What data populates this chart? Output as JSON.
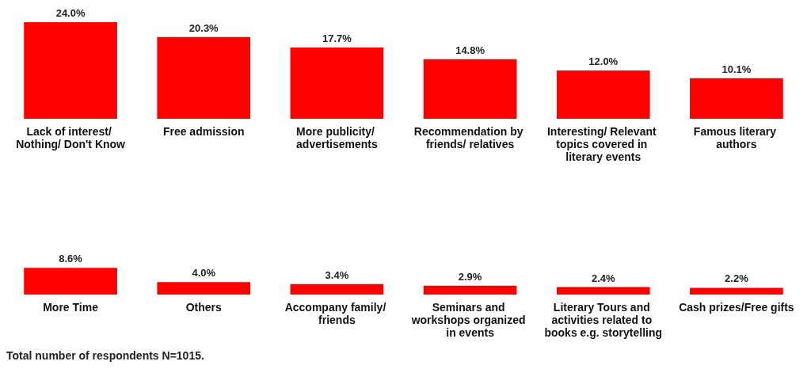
{
  "chart_data": [
    {
      "type": "bar",
      "categories": [
        "Lack of interest/ Nothing/ Don't Know",
        "Free admission",
        "More publicity/ advertisements",
        "Recommendation by friends/ relatives",
        "Interesting/ Relevant topics covered in literary events",
        "Famous literary authors"
      ],
      "values": [
        24.0,
        20.3,
        17.7,
        14.8,
        12.0,
        10.1
      ],
      "value_labels": [
        "24.0%",
        "20.3%",
        "17.7%",
        "14.8%",
        "12.0%",
        "10.1%"
      ],
      "color": "#ff0000"
    },
    {
      "type": "bar",
      "categories": [
        "More Time",
        "Others",
        "Accompany family/ friends",
        "Seminars and workshops organized in events",
        "Literary Tours and activities related to books e.g. storytelling",
        "Cash prizes/Free gifts"
      ],
      "values": [
        8.6,
        4.0,
        3.4,
        2.9,
        2.4,
        2.2
      ],
      "value_labels": [
        "8.6%",
        "4.0%",
        "3.4%",
        "2.9%",
        "2.4%",
        "2.2%"
      ],
      "color": "#ff0000",
      "annotations": [
        "Total number of respondents N=1015."
      ]
    }
  ]
}
